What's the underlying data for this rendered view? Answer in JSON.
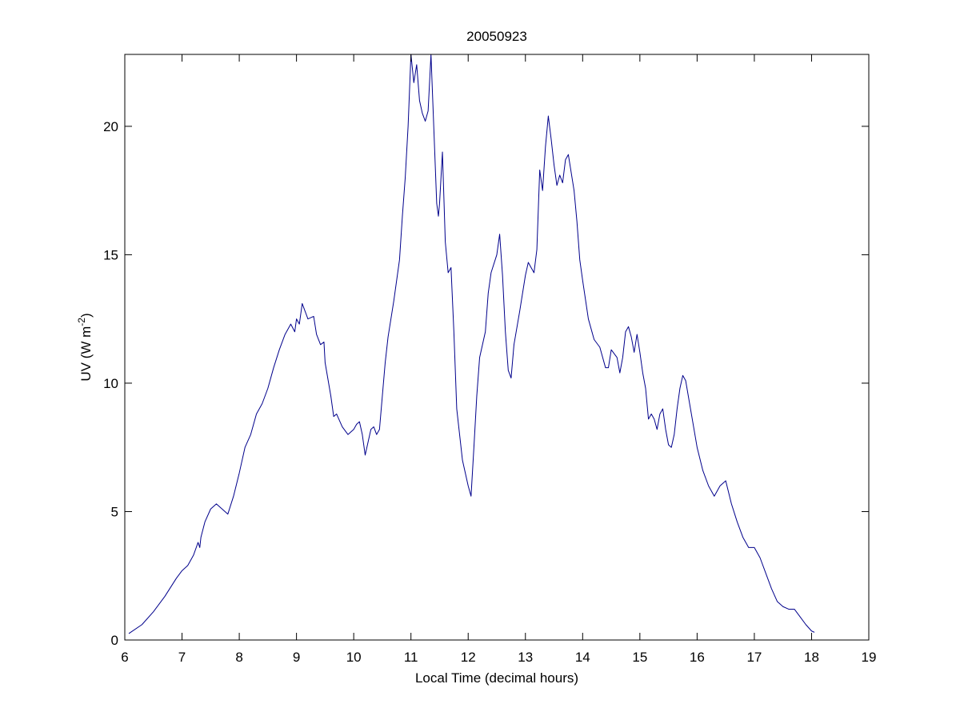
{
  "chart_data": {
    "type": "line",
    "title": "20050923",
    "xlabel": "Local Time (decimal hours)",
    "ylabel": {
      "prefix": "UV (W m",
      "superscript": "-2",
      "suffix": ")"
    },
    "xlim": [
      6,
      19
    ],
    "ylim": [
      0,
      22.8
    ],
    "xticks": [
      "6",
      "7",
      "8",
      "9",
      "10",
      "11",
      "12",
      "13",
      "14",
      "15",
      "16",
      "17",
      "18",
      "19"
    ],
    "yticks": [
      "0",
      "5",
      "10",
      "15",
      "20"
    ],
    "grid": false,
    "line_color": "#00008b",
    "series": [
      {
        "x": [
          6.07,
          6.3,
          6.5,
          6.7,
          6.9,
          7.0,
          7.1,
          7.2,
          7.28,
          7.31,
          7.33,
          7.4,
          7.5,
          7.6,
          7.7,
          7.8,
          7.9,
          8.0,
          8.1,
          8.2,
          8.3,
          8.4,
          8.5,
          8.6,
          8.7,
          8.8,
          8.9,
          8.97,
          9.0,
          9.05,
          9.1,
          9.15,
          9.2,
          9.3,
          9.35,
          9.42,
          9.48,
          9.5,
          9.6,
          9.65,
          9.7,
          9.8,
          9.9,
          10.0,
          10.05,
          10.1,
          10.15,
          10.2,
          10.3,
          10.35,
          10.4,
          10.45,
          10.5,
          10.55,
          10.6,
          10.7,
          10.8,
          10.85,
          10.9,
          10.95,
          11.0,
          11.05,
          11.1,
          11.15,
          11.2,
          11.25,
          11.3,
          11.35,
          11.4,
          11.45,
          11.48,
          11.5,
          11.55,
          11.6,
          11.65,
          11.7,
          11.75,
          11.8,
          11.9,
          12.0,
          12.05,
          12.1,
          12.15,
          12.2,
          12.3,
          12.35,
          12.4,
          12.5,
          12.55,
          12.6,
          12.65,
          12.7,
          12.75,
          12.8,
          12.9,
          13.0,
          13.05,
          13.1,
          13.15,
          13.2,
          13.25,
          13.3,
          13.35,
          13.4,
          13.45,
          13.5,
          13.55,
          13.6,
          13.65,
          13.7,
          13.75,
          13.8,
          13.85,
          13.9,
          13.95,
          14.0,
          14.1,
          14.2,
          14.3,
          14.4,
          14.45,
          14.5,
          14.6,
          14.65,
          14.7,
          14.75,
          14.8,
          14.85,
          14.9,
          14.95,
          15.0,
          15.05,
          15.1,
          15.15,
          15.2,
          15.25,
          15.3,
          15.35,
          15.4,
          15.45,
          15.5,
          15.55,
          15.6,
          15.65,
          15.7,
          15.75,
          15.8,
          15.9,
          16.0,
          16.1,
          16.2,
          16.3,
          16.4,
          16.5,
          16.6,
          16.7,
          16.8,
          16.9,
          17.0,
          17.1,
          17.2,
          17.3,
          17.4,
          17.5,
          17.6,
          17.7,
          17.8,
          17.9,
          18.0,
          18.05
        ],
        "y": [
          0.25,
          0.6,
          1.1,
          1.7,
          2.4,
          2.7,
          2.9,
          3.3,
          3.8,
          3.6,
          4.0,
          4.6,
          5.1,
          5.3,
          5.1,
          4.9,
          5.6,
          6.5,
          7.5,
          8.0,
          8.8,
          9.2,
          9.8,
          10.6,
          11.3,
          11.9,
          12.3,
          12.0,
          12.5,
          12.3,
          13.1,
          12.8,
          12.5,
          12.6,
          11.9,
          11.5,
          11.6,
          10.8,
          9.5,
          8.7,
          8.8,
          8.3,
          8.0,
          8.2,
          8.4,
          8.5,
          8.0,
          7.2,
          8.2,
          8.3,
          8.0,
          8.2,
          9.5,
          10.8,
          11.8,
          13.2,
          14.8,
          16.5,
          18.0,
          20.0,
          22.8,
          21.7,
          22.4,
          21.0,
          20.5,
          20.2,
          20.6,
          22.9,
          19.9,
          17.0,
          16.5,
          17.0,
          19.0,
          15.5,
          14.3,
          14.5,
          12.0,
          9.0,
          7.0,
          6.0,
          5.6,
          7.5,
          9.5,
          11.0,
          12.0,
          13.5,
          14.3,
          15.0,
          15.8,
          14.2,
          12.0,
          10.5,
          10.2,
          11.5,
          12.8,
          14.2,
          14.7,
          14.5,
          14.3,
          15.2,
          18.3,
          17.5,
          19.2,
          20.4,
          19.5,
          18.5,
          17.7,
          18.1,
          17.8,
          18.7,
          18.9,
          18.2,
          17.5,
          16.3,
          14.8,
          14.0,
          12.5,
          11.7,
          11.4,
          10.6,
          10.6,
          11.3,
          11.0,
          10.4,
          11.0,
          12.0,
          12.2,
          11.8,
          11.2,
          11.9,
          11.2,
          10.4,
          9.8,
          8.6,
          8.8,
          8.6,
          8.2,
          8.8,
          9.0,
          8.2,
          7.6,
          7.5,
          8.0,
          9.0,
          9.8,
          10.3,
          10.1,
          8.8,
          7.5,
          6.6,
          6.0,
          5.6,
          6.0,
          6.2,
          5.3,
          4.6,
          4.0,
          3.6,
          3.6,
          3.2,
          2.6,
          2.0,
          1.5,
          1.3,
          1.2,
          1.2,
          0.9,
          0.6,
          0.35,
          0.3
        ]
      }
    ]
  }
}
